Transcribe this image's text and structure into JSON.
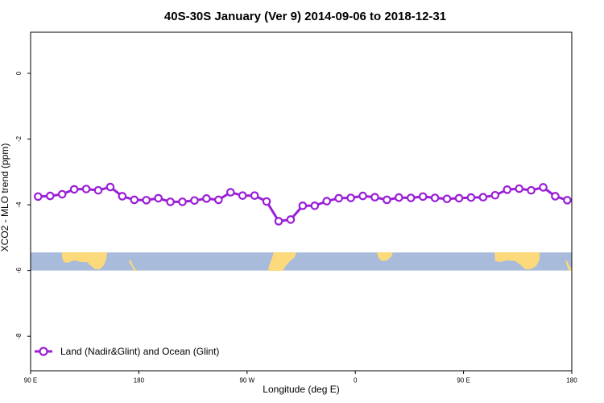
{
  "chart_data": {
    "type": "line",
    "title": "40S-30S January (Ver 9)   2014-09-06 to 2018-12-31",
    "xlabel": "Longitude (deg E)",
    "ylabel": "XCO2 - MLO trend (ppm)",
    "xlim": [
      90,
      450
    ],
    "ylim": [
      -9.05,
      1.25
    ],
    "x_ticks": [
      {
        "value": 90,
        "label": "90 E"
      },
      {
        "value": 162,
        "label": "180"
      },
      {
        "value": 234,
        "label": "90 W"
      },
      {
        "value": 306,
        "label": "0"
      },
      {
        "value": 378,
        "label": "90 E"
      },
      {
        "value": 450,
        "label": "180"
      }
    ],
    "y_ticks": [
      {
        "value": 0,
        "label": "0"
      },
      {
        "value": -2,
        "label": "-2"
      },
      {
        "value": -4,
        "label": "-4"
      },
      {
        "value": -6,
        "label": "-6"
      },
      {
        "value": -8,
        "label": "-8"
      }
    ],
    "series": [
      {
        "name": "Land (Nadir&Glint) and Ocean (Glint)",
        "color": "#9a1fd6",
        "x": [
          95,
          103,
          111,
          119,
          127,
          135,
          143,
          151,
          159,
          167,
          175,
          183,
          191,
          199,
          207,
          215,
          223,
          231,
          239,
          247,
          255,
          263,
          271,
          279,
          287,
          295,
          303,
          311,
          319,
          327,
          335,
          343,
          351,
          359,
          367,
          375,
          383,
          391,
          399,
          407,
          415,
          423,
          431,
          439,
          447
        ],
        "values": [
          -3.75,
          -3.73,
          -3.68,
          -3.53,
          -3.52,
          -3.56,
          -3.46,
          -3.74,
          -3.85,
          -3.86,
          -3.8,
          -3.91,
          -3.91,
          -3.87,
          -3.81,
          -3.85,
          -3.62,
          -3.72,
          -3.72,
          -3.9,
          -4.5,
          -4.45,
          -4.03,
          -4.03,
          -3.89,
          -3.8,
          -3.79,
          -3.73,
          -3.77,
          -3.85,
          -3.78,
          -3.79,
          -3.75,
          -3.79,
          -3.82,
          -3.8,
          -3.78,
          -3.77,
          -3.71,
          -3.54,
          -3.51,
          -3.56,
          -3.47,
          -3.74,
          -3.86
        ]
      }
    ],
    "map_band": {
      "y_top": -5.45,
      "y_bottom": -6.0,
      "ocean_color": "#a8bbdb",
      "land_color": "#fcd97b"
    },
    "legend": {
      "position": "bottom-left"
    },
    "grid": false
  }
}
